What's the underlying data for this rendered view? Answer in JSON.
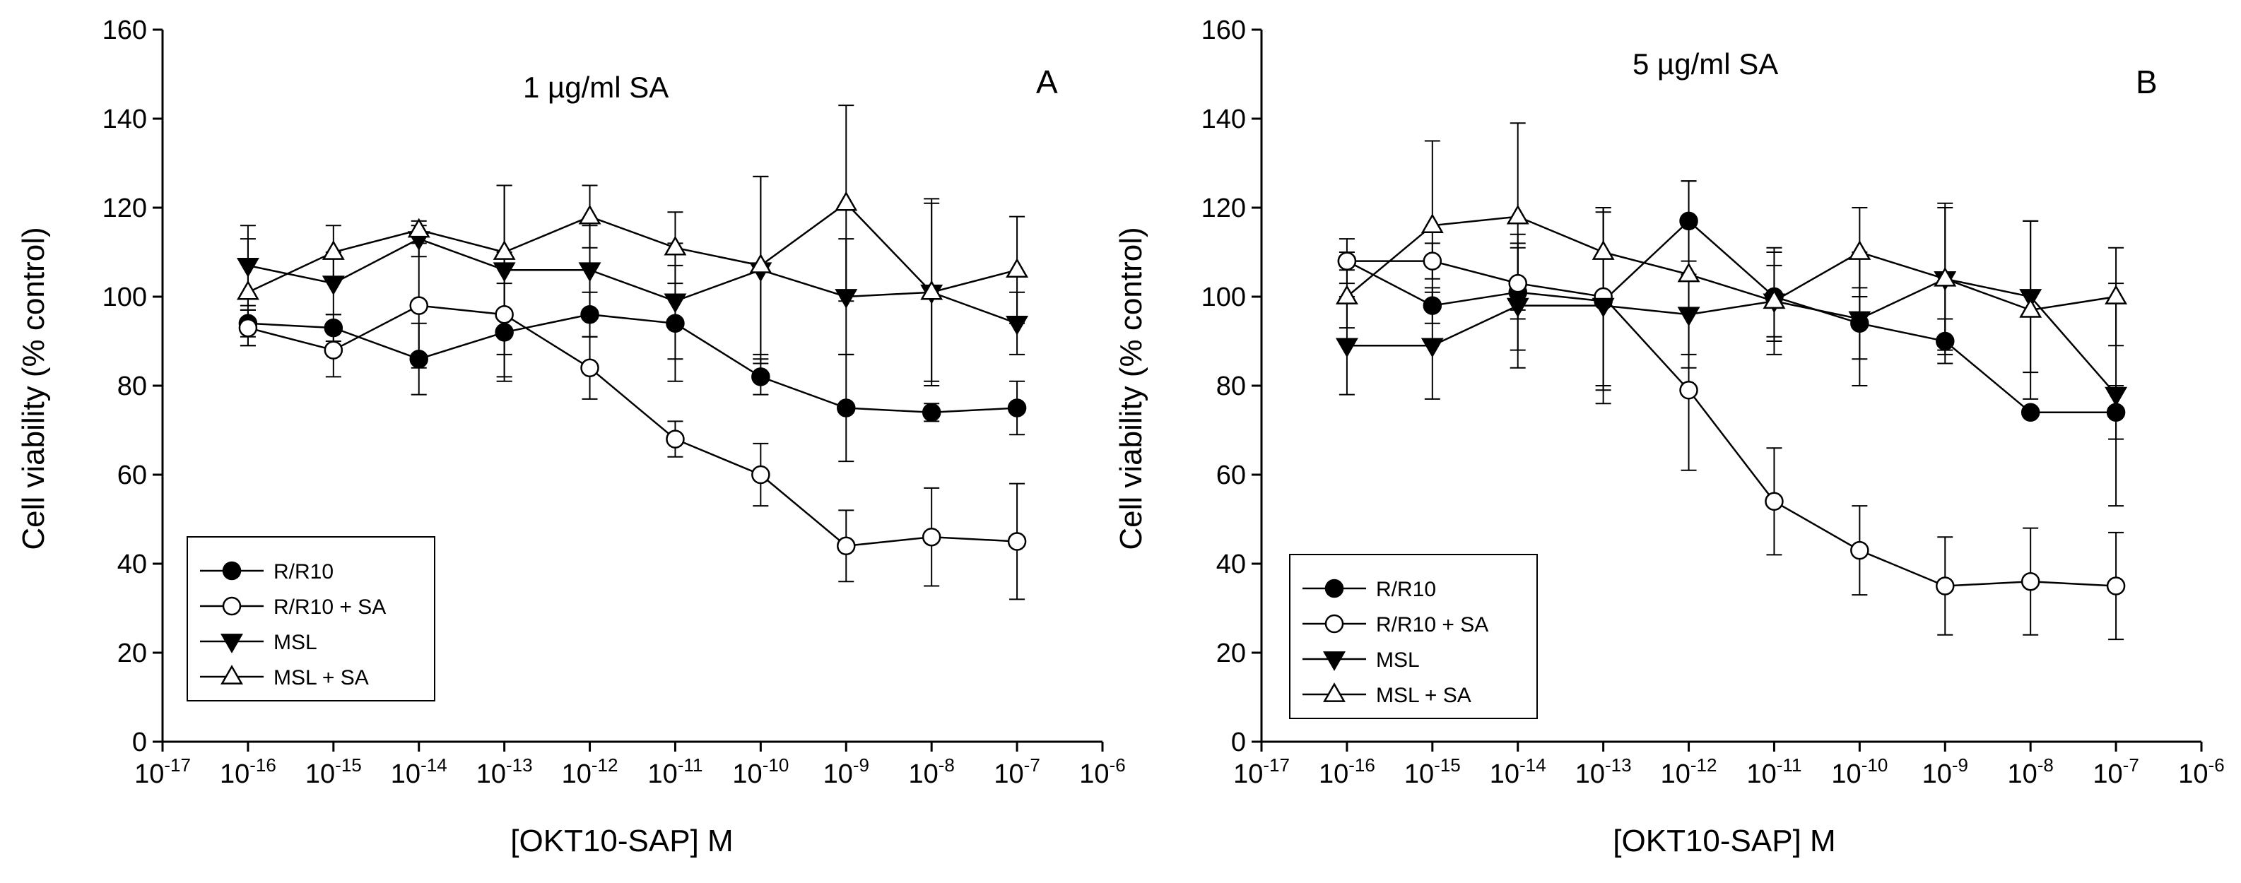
{
  "chart_data": [
    {
      "type": "line",
      "panel_letter": "A",
      "annotation": "1 µg/ml SA",
      "xlabel": "[OKT10-SAP] M",
      "ylabel": "Cell viability (% control)",
      "ylim": [
        0,
        160
      ],
      "yticks": [
        "0",
        "20",
        "40",
        "60",
        "80",
        "100",
        "120",
        "140",
        "160"
      ],
      "xlim_exponent": [
        -17,
        -6
      ],
      "xtick_base": "10",
      "xtick_exponents": [
        "-17",
        "-16",
        "-15",
        "-14",
        "-13",
        "-12",
        "-11",
        "-10",
        "-9",
        "-8",
        "-7",
        "-6"
      ],
      "x_exponents": [
        -16,
        -15,
        -14,
        -13,
        -12,
        -11,
        -10,
        -9,
        -8,
        -7
      ],
      "grid": false,
      "legend_position": "bottom-left",
      "series": [
        {
          "name": "R/R10",
          "marker": "circle-filled",
          "values": [
            94,
            93,
            86,
            92,
            96,
            94,
            82,
            75,
            74,
            75
          ],
          "errors": [
            3,
            3,
            8,
            11,
            5,
            13,
            4,
            12,
            2,
            6
          ]
        },
        {
          "name": "R/R10 + SA",
          "marker": "circle-open",
          "values": [
            93,
            88,
            98,
            96,
            84,
            68,
            60,
            44,
            46,
            45
          ],
          "errors": [
            4,
            6,
            14,
            14,
            7,
            4,
            7,
            8,
            11,
            13
          ]
        },
        {
          "name": "MSL",
          "marker": "triangle-down-filled",
          "values": [
            107,
            103,
            113,
            106,
            106,
            99,
            106,
            100,
            101,
            94
          ],
          "errors": [
            9,
            7,
            4,
            19,
            10,
            13,
            21,
            13,
            20,
            7
          ]
        },
        {
          "name": "MSL + SA",
          "marker": "triangle-up-open",
          "values": [
            101,
            110,
            115,
            110,
            118,
            111,
            107,
            121,
            101,
            106
          ],
          "errors": [
            12,
            6,
            1,
            15,
            7,
            8,
            20,
            22,
            21,
            12
          ]
        }
      ]
    },
    {
      "type": "line",
      "panel_letter": "B",
      "annotation": "5 µg/ml SA",
      "xlabel": "[OKT10-SAP] M",
      "ylabel": "Cell viability (% control)",
      "ylim": [
        0,
        160
      ],
      "yticks": [
        "0",
        "20",
        "40",
        "60",
        "80",
        "100",
        "120",
        "140",
        "160"
      ],
      "xlim_exponent": [
        -17,
        -6
      ],
      "xtick_base": "10",
      "xtick_exponents": [
        "-17",
        "-16",
        "-15",
        "-14",
        "-13",
        "-12",
        "-11",
        "-10",
        "-9",
        "-8",
        "-7",
        "-6"
      ],
      "x_exponents": [
        -16,
        -15,
        -14,
        -13,
        -12,
        -11,
        -10,
        -9,
        -8,
        -7
      ],
      "grid": false,
      "legend_position": "bottom-left",
      "series": [
        {
          "name": "R/R10",
          "marker": "circle-filled",
          "values": [
            108,
            98,
            101,
            99,
            117,
            100,
            94,
            90,
            74,
            74
          ],
          "errors": [
            5,
            4,
            13,
            20,
            9,
            10,
            8,
            5,
            1,
            6
          ]
        },
        {
          "name": "R/R10 + SA",
          "marker": "circle-open",
          "values": [
            108,
            108,
            103,
            100,
            79,
            54,
            43,
            35,
            36,
            35
          ],
          "errors": [
            2,
            4,
            8,
            20,
            18,
            12,
            10,
            11,
            12,
            12
          ]
        },
        {
          "name": "MSL",
          "marker": "triangle-down-filled",
          "values": [
            89,
            89,
            98,
            98,
            96,
            99,
            95,
            104,
            100,
            78
          ],
          "errors": [
            11,
            12,
            14,
            22,
            9,
            12,
            15,
            17,
            17,
            25
          ]
        },
        {
          "name": "MSL + SA",
          "marker": "triangle-up-open",
          "values": [
            100,
            116,
            118,
            110,
            105,
            99,
            110,
            104,
            97,
            100
          ],
          "errors": [
            7,
            19,
            21,
            10,
            21,
            8,
            10,
            16,
            20,
            11
          ]
        }
      ]
    }
  ]
}
